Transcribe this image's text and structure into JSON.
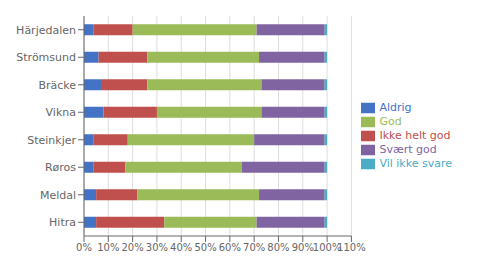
{
  "chart_data": {
    "type": "bar",
    "orientation": "horizontal",
    "stacked": true,
    "grid": true,
    "legend": "right",
    "categories": [
      "Härjedalen",
      "Strömsund",
      "Bräcke",
      "Vikna",
      "Steinkjer",
      "Røros",
      "Meldal",
      "Hitra"
    ],
    "series": [
      {
        "name": "Aldrig",
        "color": "#4472C4",
        "values": [
          4,
          6,
          7,
          8,
          4,
          4,
          5,
          5
        ]
      },
      {
        "name": "Ikke helt god",
        "color": "#C0504D",
        "values": [
          16,
          20,
          19,
          22,
          14,
          13,
          17,
          28
        ]
      },
      {
        "name": "God",
        "color": "#9BBB59",
        "values": [
          51,
          46,
          47,
          43,
          52,
          48,
          50,
          38
        ]
      },
      {
        "name": "Svært god",
        "color": "#8064A2",
        "values": [
          28,
          27,
          26,
          26,
          29,
          34,
          27,
          28
        ]
      },
      {
        "name": "Vil ikke svare",
        "color": "#4BACC6",
        "values": [
          1,
          1,
          1,
          1,
          1,
          1,
          1,
          1
        ]
      }
    ],
    "xlim": [
      0,
      110
    ],
    "xticks": [
      {
        "value": 0,
        "label": "0%"
      },
      {
        "value": 10,
        "label": "10%"
      },
      {
        "value": 20,
        "label": "20%"
      },
      {
        "value": 30,
        "label": "30%"
      },
      {
        "value": 40,
        "label": "40%"
      },
      {
        "value": 50,
        "label": "50%"
      },
      {
        "value": 60,
        "label": "60%"
      },
      {
        "value": 70,
        "label": "70%"
      },
      {
        "value": 80,
        "label": "80%"
      },
      {
        "value": 90,
        "label": "90%"
      },
      {
        "value": 100,
        "label": "100%"
      },
      {
        "value": 110,
        "label": "110%"
      }
    ]
  }
}
